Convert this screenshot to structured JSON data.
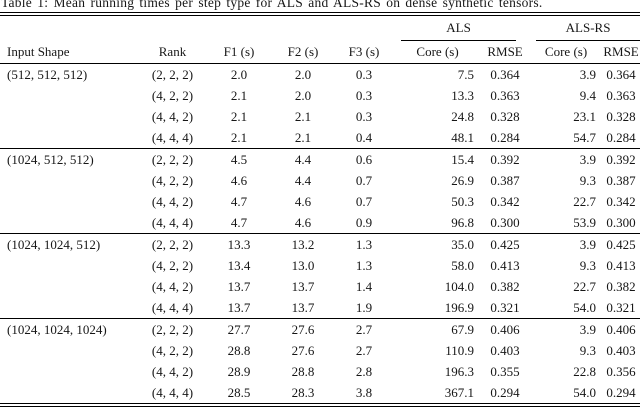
{
  "caption": "Table 1: Mean running times per step type for ALS and ALS-RS on dense synthetic tensors.",
  "header": {
    "groups": [
      {
        "label": "ALS"
      },
      {
        "label": "ALS-RS"
      }
    ],
    "columns": [
      "Input Shape",
      "Rank",
      "F1 (s)",
      "F2 (s)",
      "F3 (s)",
      "Core (s)",
      "RMSE",
      "Core (s)",
      "RMSE"
    ]
  },
  "blocks": [
    {
      "input_shape": "(512, 512, 512)",
      "rows": [
        [
          "(2, 2, 2)",
          "2.0",
          "2.0",
          "0.3",
          "7.5",
          "0.364",
          "3.9",
          "0.364"
        ],
        [
          "(4, 2, 2)",
          "2.1",
          "2.0",
          "0.3",
          "13.3",
          "0.363",
          "9.4",
          "0.363"
        ],
        [
          "(4, 4, 2)",
          "2.1",
          "2.1",
          "0.3",
          "24.8",
          "0.328",
          "23.1",
          "0.328"
        ],
        [
          "(4, 4, 4)",
          "2.1",
          "2.1",
          "0.4",
          "48.1",
          "0.284",
          "54.7",
          "0.284"
        ]
      ]
    },
    {
      "input_shape": "(1024, 512, 512)",
      "rows": [
        [
          "(2, 2, 2)",
          "4.5",
          "4.4",
          "0.6",
          "15.4",
          "0.392",
          "3.9",
          "0.392"
        ],
        [
          "(4, 2, 2)",
          "4.6",
          "4.4",
          "0.7",
          "26.9",
          "0.387",
          "9.3",
          "0.387"
        ],
        [
          "(4, 4, 2)",
          "4.7",
          "4.6",
          "0.7",
          "50.3",
          "0.342",
          "22.7",
          "0.342"
        ],
        [
          "(4, 4, 4)",
          "4.7",
          "4.6",
          "0.9",
          "96.8",
          "0.300",
          "53.9",
          "0.300"
        ]
      ]
    },
    {
      "input_shape": "(1024, 1024, 512)",
      "rows": [
        [
          "(2, 2, 2)",
          "13.3",
          "13.2",
          "1.3",
          "35.0",
          "0.425",
          "3.9",
          "0.425"
        ],
        [
          "(4, 2, 2)",
          "13.4",
          "13.0",
          "1.3",
          "58.0",
          "0.413",
          "9.3",
          "0.413"
        ],
        [
          "(4, 4, 2)",
          "13.7",
          "13.7",
          "1.4",
          "104.0",
          "0.382",
          "22.7",
          "0.382"
        ],
        [
          "(4, 4, 4)",
          "13.7",
          "13.7",
          "1.9",
          "196.9",
          "0.321",
          "54.0",
          "0.321"
        ]
      ]
    },
    {
      "input_shape": "(1024, 1024, 1024)",
      "rows": [
        [
          "(2, 2, 2)",
          "27.7",
          "27.6",
          "2.7",
          "67.9",
          "0.406",
          "3.9",
          "0.406"
        ],
        [
          "(4, 2, 2)",
          "28.8",
          "27.6",
          "2.7",
          "110.9",
          "0.403",
          "9.3",
          "0.403"
        ],
        [
          "(4, 4, 2)",
          "28.9",
          "28.8",
          "2.8",
          "196.3",
          "0.355",
          "22.8",
          "0.356"
        ],
        [
          "(4, 4, 4)",
          "28.5",
          "28.3",
          "3.8",
          "367.1",
          "0.294",
          "54.0",
          "0.294"
        ]
      ]
    }
  ],
  "colors": {
    "background": "#ffffff",
    "text": "#161616",
    "rule": "#000000"
  }
}
